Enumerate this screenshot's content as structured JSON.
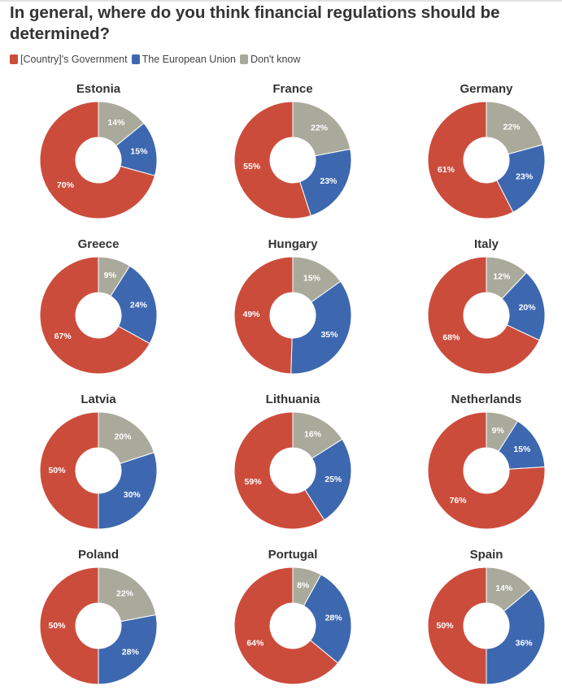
{
  "title": "In general, where do you think financial regulations should be determined?",
  "colors": {
    "government": "#cc4c3c",
    "eu": "#3d68b0",
    "dont_know": "#a9aa9b"
  },
  "legend": {
    "government": "[Country]'s Government",
    "eu": "The European Union",
    "dont_know": "Don't know"
  },
  "chart_data": {
    "type": "pie",
    "title": "In general, where do you think financial regulations should be determined?",
    "series_names": [
      "[Country]'s Government",
      "The European Union",
      "Don't know"
    ],
    "unit": "%",
    "charts": [
      {
        "country": "Estonia",
        "government": 70,
        "eu": 15,
        "dont_know": 14
      },
      {
        "country": "France",
        "government": 55,
        "eu": 23,
        "dont_know": 22
      },
      {
        "country": "Germany",
        "government": 61,
        "eu": 23,
        "dont_know": 22
      },
      {
        "country": "Greece",
        "government": 67,
        "eu": 24,
        "dont_know": 9
      },
      {
        "country": "Hungary",
        "government": 49,
        "eu": 35,
        "dont_know": 15
      },
      {
        "country": "Italy",
        "government": 68,
        "eu": 20,
        "dont_know": 12
      },
      {
        "country": "Latvia",
        "government": 50,
        "eu": 30,
        "dont_know": 20
      },
      {
        "country": "Lithuania",
        "government": 59,
        "eu": 25,
        "dont_know": 16
      },
      {
        "country": "Netherlands",
        "government": 76,
        "eu": 15,
        "dont_know": 9
      },
      {
        "country": "Poland",
        "government": 50,
        "eu": 28,
        "dont_know": 22
      },
      {
        "country": "Portugal",
        "government": 64,
        "eu": 28,
        "dont_know": 8
      },
      {
        "country": "Spain",
        "government": 50,
        "eu": 36,
        "dont_know": 14
      }
    ]
  }
}
